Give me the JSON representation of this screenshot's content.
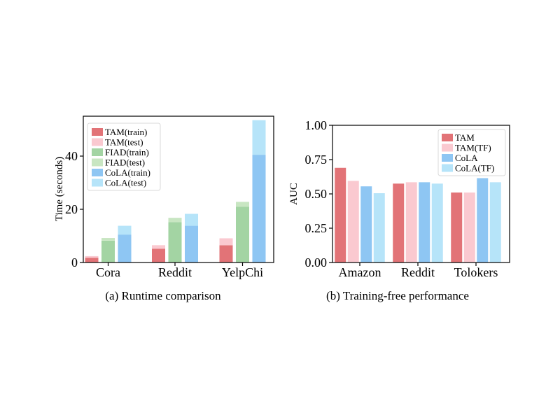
{
  "chart_data": [
    {
      "type": "bar",
      "stacked": true,
      "caption": "(a)  Runtime comparison",
      "ylabel": "Time (seconds)",
      "xlabel": "",
      "ylim": [
        0,
        55
      ],
      "yticks": [
        0,
        20,
        40
      ],
      "grid": false,
      "legend_position": "top-left",
      "categories": [
        "Cora",
        "Reddit",
        "YelpChi"
      ],
      "methods": [
        {
          "train_name": "TAM(train)",
          "test_name": "TAM(test)",
          "train_color": "#e27377",
          "test_color": "#fac9d0",
          "train": [
            1.8,
            5.2,
            6.5
          ],
          "test": [
            0.6,
            1.3,
            2.6
          ]
        },
        {
          "train_name": "FIAD(train)",
          "test_name": "FIAD(test)",
          "train_color": "#a3d4a3",
          "test_color": "#c8e6c2",
          "train": [
            8.2,
            15.2,
            21.0
          ],
          "test": [
            1.0,
            1.6,
            1.8
          ]
        },
        {
          "train_name": "CoLA(train)",
          "test_name": "CoLA(test)",
          "train_color": "#8ec6f3",
          "test_color": "#b6e4f9",
          "train": [
            10.5,
            13.8,
            40.5
          ],
          "test": [
            3.3,
            4.5,
            13.0
          ]
        }
      ]
    },
    {
      "type": "bar",
      "caption": "(b)  Training-free performance",
      "ylabel": "AUC",
      "xlabel": "",
      "ylim": [
        0,
        1
      ],
      "yticks": [
        "0.00",
        "0.25",
        "0.50",
        "0.75",
        "1.00"
      ],
      "grid": false,
      "legend_position": "top-right",
      "categories": [
        "Amazon",
        "Reddit",
        "Tolokers"
      ],
      "series": [
        {
          "name": "TAM",
          "color": "#e27377",
          "values": [
            0.69,
            0.575,
            0.51
          ]
        },
        {
          "name": "TAM(TF)",
          "color": "#fac9d0",
          "values": [
            0.595,
            0.585,
            0.51
          ]
        },
        {
          "name": "CoLA",
          "color": "#8ec6f3",
          "values": [
            0.555,
            0.585,
            0.615
          ]
        },
        {
          "name": "CoLA(TF)",
          "color": "#b6e4f9",
          "values": [
            0.505,
            0.575,
            0.585
          ]
        }
      ]
    }
  ]
}
